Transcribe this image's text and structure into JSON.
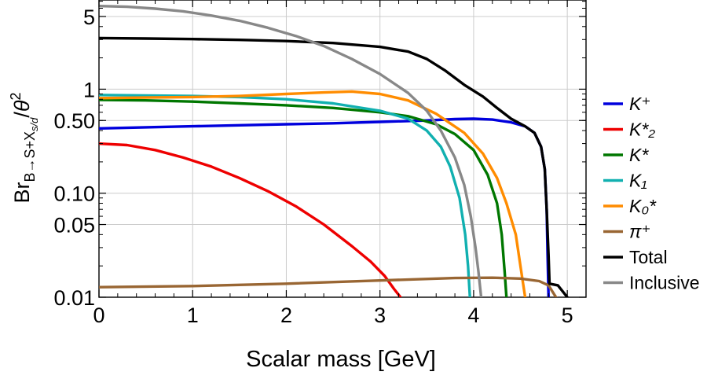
{
  "chart_data": {
    "type": "line",
    "xlabel": "Scalar mass [GeV]",
    "ylabel": "Br_{B→S+X_{s/d}}/θ^2",
    "xlim": [
      0,
      5.2
    ],
    "ylim": [
      0.01,
      7.2
    ],
    "y_scale": "log",
    "grid": true,
    "legend_position": "right",
    "x_ticks": [
      "0",
      "1",
      "2",
      "3",
      "4",
      "5"
    ],
    "y_ticks": [
      {
        "value": 0.01,
        "label": "0.01"
      },
      {
        "value": 0.05,
        "label": "0.05"
      },
      {
        "value": 0.1,
        "label": "0.10"
      },
      {
        "value": 0.5,
        "label": "0.50"
      },
      {
        "value": 1,
        "label": "1"
      },
      {
        "value": 5,
        "label": "5"
      }
    ],
    "series": [
      {
        "name": "K⁺",
        "color": "#0000dd",
        "points": [
          [
            0,
            0.42
          ],
          [
            0.5,
            0.43
          ],
          [
            1,
            0.44
          ],
          [
            1.5,
            0.45
          ],
          [
            2,
            0.46
          ],
          [
            2.5,
            0.47
          ],
          [
            3,
            0.485
          ],
          [
            3.5,
            0.5
          ],
          [
            3.8,
            0.515
          ],
          [
            4.0,
            0.52
          ],
          [
            4.2,
            0.51
          ],
          [
            4.4,
            0.48
          ],
          [
            4.55,
            0.44
          ],
          [
            4.65,
            0.38
          ],
          [
            4.72,
            0.28
          ],
          [
            4.76,
            0.17
          ],
          [
            4.78,
            0.07
          ],
          [
            4.79,
            0.025
          ],
          [
            4.8,
            0.01
          ]
        ]
      },
      {
        "name": "K*₂",
        "color": "#ee0000",
        "points": [
          [
            0,
            0.3
          ],
          [
            0.3,
            0.29
          ],
          [
            0.6,
            0.26
          ],
          [
            0.9,
            0.22
          ],
          [
            1.2,
            0.18
          ],
          [
            1.5,
            0.14
          ],
          [
            1.8,
            0.105
          ],
          [
            2.1,
            0.075
          ],
          [
            2.4,
            0.05
          ],
          [
            2.7,
            0.031
          ],
          [
            2.9,
            0.022
          ],
          [
            3.05,
            0.016
          ],
          [
            3.15,
            0.012
          ],
          [
            3.22,
            0.01
          ]
        ]
      },
      {
        "name": "K*",
        "color": "#007700",
        "points": [
          [
            0,
            0.79
          ],
          [
            0.5,
            0.78
          ],
          [
            1,
            0.76
          ],
          [
            1.5,
            0.73
          ],
          [
            2,
            0.7
          ],
          [
            2.5,
            0.66
          ],
          [
            3,
            0.6
          ],
          [
            3.3,
            0.55
          ],
          [
            3.6,
            0.46
          ],
          [
            3.8,
            0.37
          ],
          [
            4.0,
            0.26
          ],
          [
            4.15,
            0.15
          ],
          [
            4.25,
            0.08
          ],
          [
            4.3,
            0.04
          ],
          [
            4.33,
            0.018
          ],
          [
            4.35,
            0.01
          ]
        ]
      },
      {
        "name": "K₁",
        "color": "#11b0b0",
        "points": [
          [
            0,
            0.88
          ],
          [
            0.5,
            0.87
          ],
          [
            1,
            0.86
          ],
          [
            1.5,
            0.84
          ],
          [
            2,
            0.8
          ],
          [
            2.5,
            0.73
          ],
          [
            3,
            0.62
          ],
          [
            3.3,
            0.52
          ],
          [
            3.5,
            0.4
          ],
          [
            3.65,
            0.28
          ],
          [
            3.75,
            0.18
          ],
          [
            3.85,
            0.09
          ],
          [
            3.91,
            0.04
          ],
          [
            3.94,
            0.02
          ],
          [
            3.96,
            0.01
          ]
        ]
      },
      {
        "name": "K₀*",
        "color": "#ff8c00",
        "points": [
          [
            0,
            0.82
          ],
          [
            0.5,
            0.83
          ],
          [
            1,
            0.84
          ],
          [
            1.5,
            0.86
          ],
          [
            2,
            0.9
          ],
          [
            2.4,
            0.93
          ],
          [
            2.7,
            0.95
          ],
          [
            3,
            0.9
          ],
          [
            3.3,
            0.78
          ],
          [
            3.6,
            0.58
          ],
          [
            3.9,
            0.38
          ],
          [
            4.1,
            0.24
          ],
          [
            4.25,
            0.14
          ],
          [
            4.35,
            0.08
          ],
          [
            4.45,
            0.04
          ],
          [
            4.5,
            0.02
          ],
          [
            4.55,
            0.01
          ]
        ]
      },
      {
        "name": "π⁺",
        "color": "#996633",
        "points": [
          [
            0,
            0.0125
          ],
          [
            1,
            0.0128
          ],
          [
            2,
            0.0135
          ],
          [
            3,
            0.0145
          ],
          [
            3.8,
            0.0153
          ],
          [
            4.2,
            0.0154
          ],
          [
            4.5,
            0.0151
          ],
          [
            4.7,
            0.0143
          ],
          [
            4.8,
            0.013
          ],
          [
            4.85,
            0.011
          ],
          [
            4.88,
            0.01
          ]
        ]
      },
      {
        "name": "Total",
        "color": "#000000",
        "points": [
          [
            0,
            3.1
          ],
          [
            0.5,
            3.07
          ],
          [
            1,
            3.03
          ],
          [
            1.5,
            2.98
          ],
          [
            2,
            2.9
          ],
          [
            2.5,
            2.78
          ],
          [
            3,
            2.55
          ],
          [
            3.3,
            2.3
          ],
          [
            3.5,
            1.95
          ],
          [
            3.7,
            1.5
          ],
          [
            3.9,
            1.1
          ],
          [
            4.1,
            0.85
          ],
          [
            4.25,
            0.66
          ],
          [
            4.4,
            0.52
          ],
          [
            4.55,
            0.44
          ],
          [
            4.65,
            0.38
          ],
          [
            4.72,
            0.28
          ],
          [
            4.76,
            0.17
          ],
          [
            4.78,
            0.07
          ],
          [
            4.8,
            0.025
          ],
          [
            4.81,
            0.0135
          ],
          [
            4.9,
            0.013
          ],
          [
            5.0,
            0.01
          ]
        ]
      },
      {
        "name": "Inclusive",
        "color": "#888888",
        "points": [
          [
            0,
            6.3
          ],
          [
            0.3,
            6.2
          ],
          [
            0.6,
            5.95
          ],
          [
            0.9,
            5.6
          ],
          [
            1.2,
            5.1
          ],
          [
            1.5,
            4.55
          ],
          [
            1.8,
            3.9
          ],
          [
            2.1,
            3.25
          ],
          [
            2.4,
            2.6
          ],
          [
            2.7,
            1.95
          ],
          [
            3.0,
            1.4
          ],
          [
            3.3,
            0.92
          ],
          [
            3.5,
            0.62
          ],
          [
            3.65,
            0.4
          ],
          [
            3.8,
            0.22
          ],
          [
            3.9,
            0.12
          ],
          [
            3.97,
            0.06
          ],
          [
            4.02,
            0.03
          ],
          [
            4.05,
            0.018
          ],
          [
            4.08,
            0.01
          ]
        ]
      }
    ]
  }
}
